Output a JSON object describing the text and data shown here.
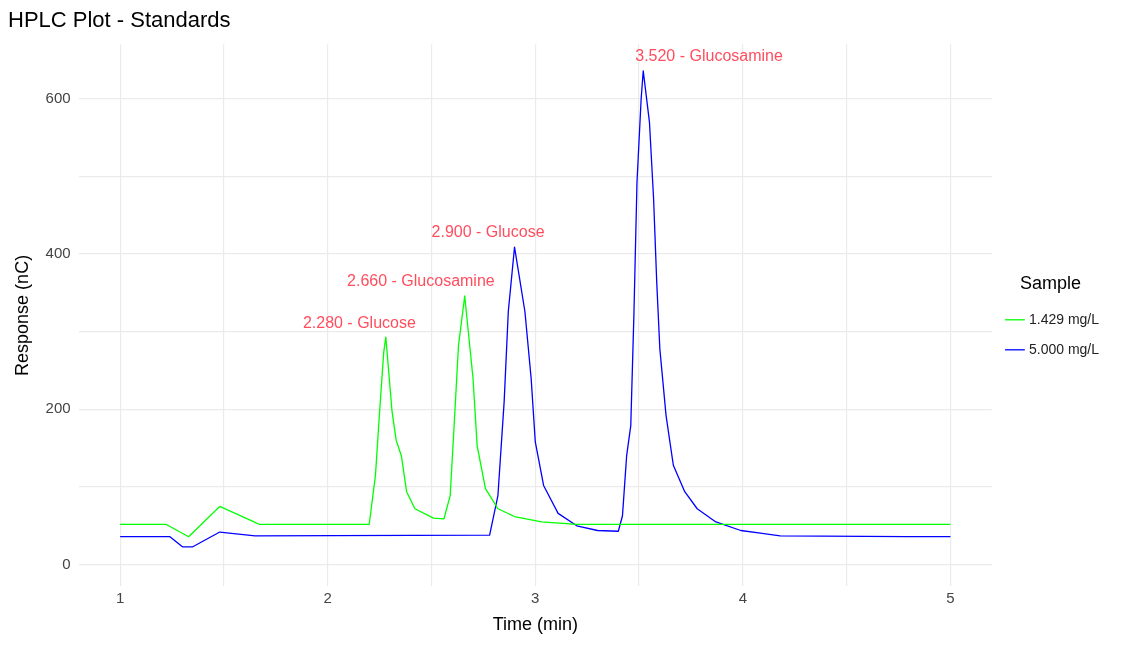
{
  "chart_data": {
    "type": "line",
    "title": "HPLC Plot - Standards",
    "xlabel": "Time (min)",
    "ylabel": "Response (nC)",
    "legend_title": "Sample",
    "legend": "right",
    "grid": true,
    "xlim": [
      0.8,
      5.2
    ],
    "ylim": [
      -28,
      670
    ],
    "xticks": [
      1,
      {
        "value": 1.5,
        "label": null
      },
      2,
      {
        "value": 2.5,
        "label": null
      },
      3,
      {
        "value": 3.5,
        "label": null
      },
      4,
      {
        "value": 4.5,
        "label": null
      },
      5
    ],
    "yticks": [
      0,
      {
        "value": 100,
        "label": null
      },
      200,
      {
        "value": 300,
        "label": null
      },
      400,
      {
        "value": 500,
        "label": null
      },
      600
    ],
    "annotations": [
      {
        "text": "2.280 - Glucose",
        "x": 2.28,
        "y": 293
      },
      {
        "text": "2.660 - Glucosamine",
        "x": 2.66,
        "y": 346
      },
      {
        "text": "2.900 - Glucose",
        "x": 2.9,
        "y": 409
      },
      {
        "text": "3.520 - Glucosamine",
        "x": 3.52,
        "y": 636
      }
    ],
    "series": [
      {
        "name": "1.429 mg/L",
        "color": "#00ff00",
        "x": [
          1,
          1.22,
          1.33,
          1.48,
          1.67,
          2.2,
          2.23,
          2.25,
          2.27,
          2.28,
          2.31,
          2.33,
          2.355,
          2.38,
          2.42,
          2.51,
          2.56,
          2.59,
          2.61,
          2.63,
          2.66,
          2.7,
          2.72,
          2.76,
          2.82,
          2.9,
          3.03,
          3.2,
          5
        ],
        "values": [
          52,
          52,
          36,
          75,
          52,
          52,
          115,
          197,
          274,
          293,
          197,
          160,
          140,
          94,
          72,
          60,
          59,
          89,
          184,
          282,
          346,
          240,
          153,
          98,
          72,
          62,
          55,
          52,
          52
        ]
      },
      {
        "name": "5.000 mg/L",
        "color": "#0000ff",
        "x": [
          1,
          1.24,
          1.3,
          1.35,
          1.48,
          1.65,
          2.78,
          2.82,
          2.85,
          2.87,
          2.9,
          2.95,
          2.98,
          3,
          3.04,
          3.11,
          3.2,
          3.3,
          3.4,
          3.42,
          3.44,
          3.46,
          3.475,
          3.49,
          3.51,
          3.52,
          3.55,
          3.57,
          3.585,
          3.6,
          3.63,
          3.665,
          3.72,
          3.78,
          3.87,
          3.99,
          4.18,
          4.79,
          5
        ],
        "values": [
          36,
          36,
          23,
          23,
          42,
          37,
          38,
          89,
          210,
          326,
          409,
          326,
          240,
          158,
          102,
          66,
          50,
          44,
          43,
          63,
          140,
          179,
          321,
          493,
          600,
          636,
          570,
          471,
          364,
          278,
          192,
          128,
          94,
          72,
          55,
          44,
          37,
          36,
          36
        ]
      }
    ]
  }
}
